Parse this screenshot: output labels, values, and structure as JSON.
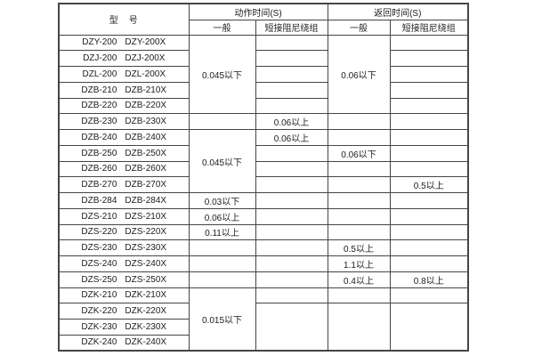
{
  "table": {
    "header": {
      "model_label": "型　号",
      "groups": [
        {
          "label": "动作时间(S)",
          "subcolumns": [
            "一般",
            "短接阻尼绕组"
          ]
        },
        {
          "label": "返回时间(S)",
          "subcolumns": [
            "一般",
            "短接阻尼绕组"
          ]
        }
      ]
    },
    "rows": [
      {
        "model": [
          "DZY-200",
          "DZY-200X"
        ],
        "cells": [
          {
            "text": "0.045以下",
            "rowspan": 5
          },
          {
            "text": ""
          },
          {
            "text": "0.06以下",
            "rowspan": 5
          },
          {
            "text": ""
          }
        ]
      },
      {
        "model": [
          "DZJ-200",
          "DZJ-200X"
        ],
        "cells": [
          null,
          {
            "text": ""
          },
          null,
          {
            "text": ""
          }
        ]
      },
      {
        "model": [
          "DZL-200",
          "DZL-200X"
        ],
        "cells": [
          null,
          {
            "text": ""
          },
          null,
          {
            "text": ""
          }
        ]
      },
      {
        "model": [
          "DZB-210",
          "DZB-210X"
        ],
        "cells": [
          null,
          {
            "text": ""
          },
          null,
          {
            "text": ""
          }
        ]
      },
      {
        "model": [
          "DZB-220",
          "DZB-220X"
        ],
        "cells": [
          null,
          {
            "text": ""
          },
          null,
          {
            "text": ""
          }
        ]
      },
      {
        "model": [
          "DZB-230",
          "DZB-230X"
        ],
        "cells": [
          {
            "text": ""
          },
          {
            "text": "0.06以上"
          },
          {
            "text": ""
          },
          {
            "text": ""
          }
        ]
      },
      {
        "model": [
          "DZB-240",
          "DZB-240X"
        ],
        "cells": [
          {
            "text": "0.045以下",
            "rowspan": 4
          },
          {
            "text": "0.06以上"
          },
          {
            "text": ""
          },
          {
            "text": ""
          }
        ]
      },
      {
        "model": [
          "DZB-250",
          "DZB-250X"
        ],
        "cells": [
          null,
          {
            "text": ""
          },
          {
            "text": "0.06以下"
          },
          {
            "text": ""
          }
        ]
      },
      {
        "model": [
          "DZB-260",
          "DZB-260X"
        ],
        "cells": [
          null,
          {
            "text": ""
          },
          {
            "text": ""
          },
          {
            "text": ""
          }
        ]
      },
      {
        "model": [
          "DZB-270",
          "DZB-270X"
        ],
        "cells": [
          null,
          {
            "text": ""
          },
          {
            "text": ""
          },
          {
            "text": "0.5以上"
          }
        ]
      },
      {
        "model": [
          "DZB-284",
          "DZB-284X"
        ],
        "cells": [
          {
            "text": "0.03以下"
          },
          {
            "text": ""
          },
          {
            "text": ""
          },
          {
            "text": ""
          }
        ]
      },
      {
        "model": [
          "DZS-210",
          "DZS-210X"
        ],
        "cells": [
          {
            "text": "0.06以上"
          },
          {
            "text": ""
          },
          {
            "text": ""
          },
          {
            "text": ""
          }
        ]
      },
      {
        "model": [
          "DZS-220",
          "DZS-220X"
        ],
        "cells": [
          {
            "text": "0.11以上"
          },
          {
            "text": ""
          },
          {
            "text": ""
          },
          {
            "text": ""
          }
        ]
      },
      {
        "model": [
          "DZS-230",
          "DZS-230X"
        ],
        "cells": [
          {
            "text": ""
          },
          {
            "text": ""
          },
          {
            "text": "0.5以上"
          },
          {
            "text": ""
          }
        ]
      },
      {
        "model": [
          "DZS-240",
          "DZS-240X"
        ],
        "cells": [
          {
            "text": ""
          },
          {
            "text": ""
          },
          {
            "text": "1.1以上"
          },
          {
            "text": ""
          }
        ]
      },
      {
        "model": [
          "DZS-250",
          "DZS-250X"
        ],
        "cells": [
          {
            "text": ""
          },
          {
            "text": ""
          },
          {
            "text": "0.4以上"
          },
          {
            "text": "0.8以上"
          }
        ]
      },
      {
        "model": [
          "DZK-210",
          "DZK-210X"
        ],
        "cells": [
          {
            "text": "0.015以下",
            "rowspan": 4
          },
          {
            "text": ""
          },
          {
            "text": ""
          },
          {
            "text": ""
          }
        ]
      },
      {
        "model": [
          "DZK-220",
          "DZK-220X"
        ],
        "cells": [
          null,
          {
            "text": "",
            "rowspan": 3
          },
          {
            "text": "",
            "rowspan": 3
          },
          {
            "text": "",
            "rowspan": 3
          }
        ]
      },
      {
        "model": [
          "DZK-230",
          "DZK-230X"
        ],
        "cells": [
          null,
          null,
          null,
          null
        ]
      },
      {
        "model": [
          "DZK-240",
          "DZK-240X"
        ],
        "cells": [
          null,
          null,
          null,
          null
        ]
      }
    ]
  },
  "colors": {
    "border": "#454545",
    "text": "#1c1c1c",
    "background": "#ffffff"
  }
}
